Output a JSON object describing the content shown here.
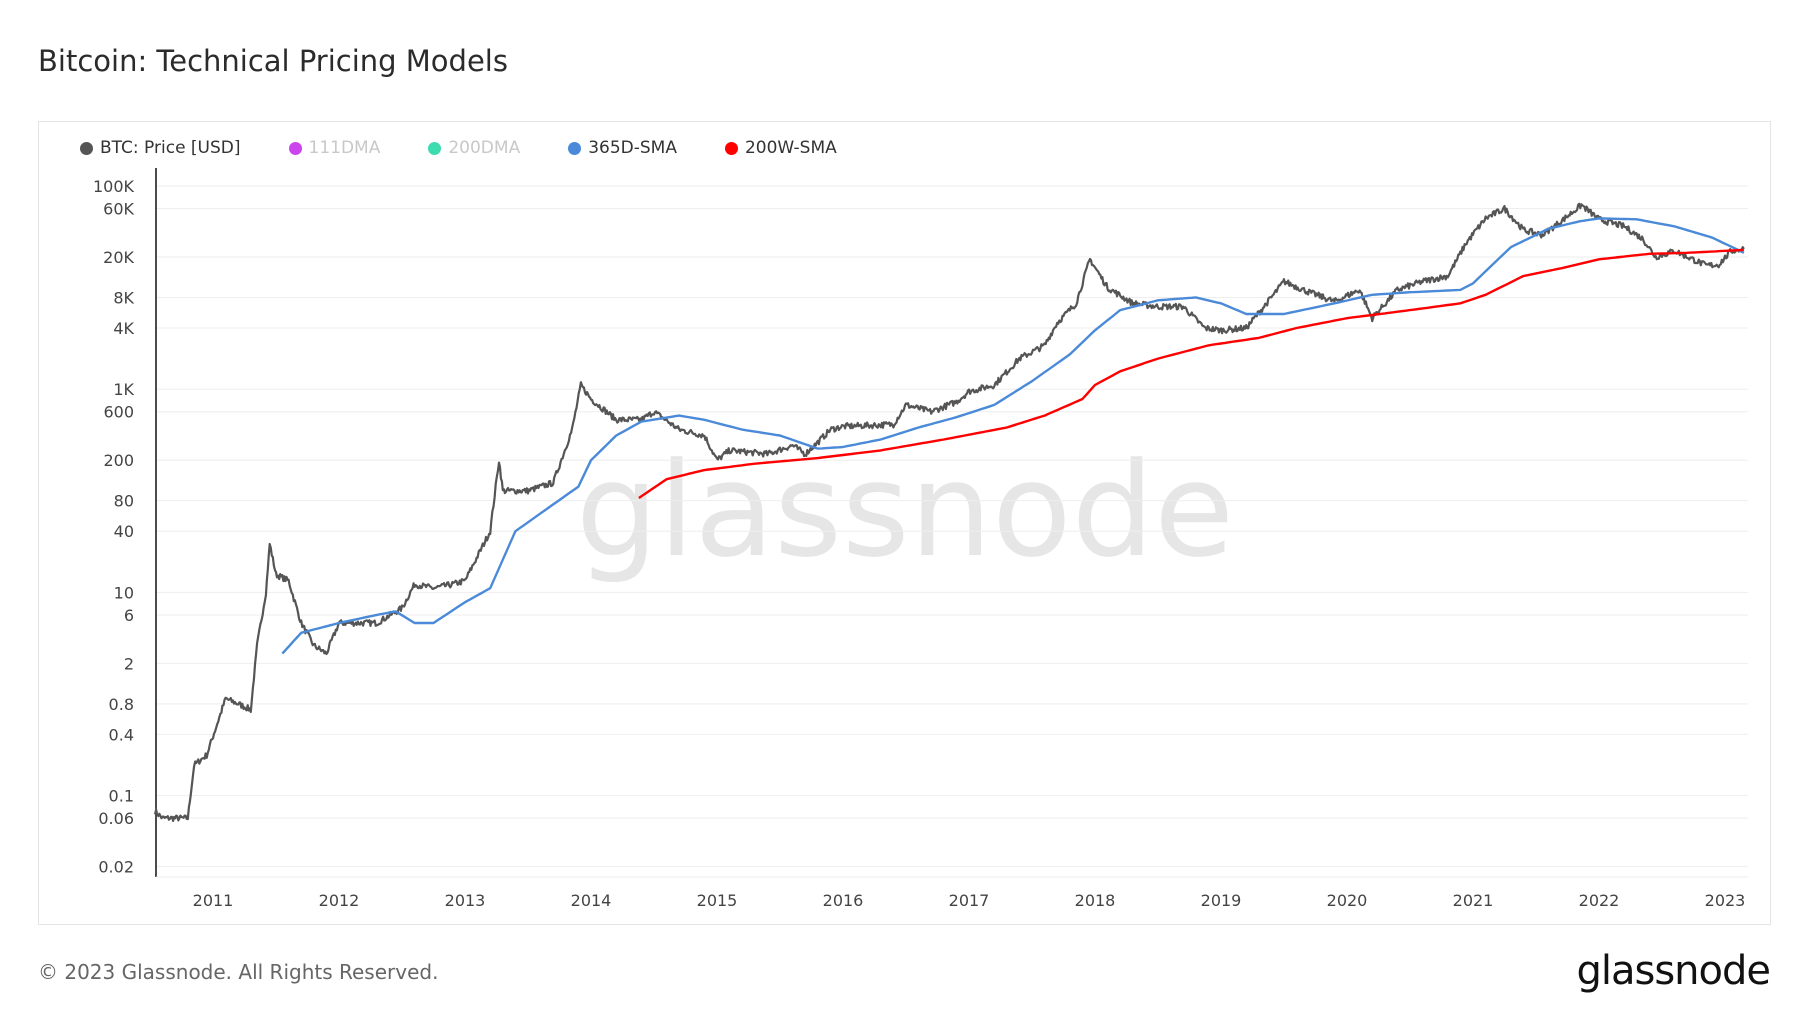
{
  "title": "Bitcoin: Technical Pricing Models",
  "footer": "© 2023 Glassnode. All Rights Reserved.",
  "logo": "glassnode",
  "watermark": "glassnode",
  "legend": [
    {
      "label": "BTC: Price [USD]",
      "color": "#555555",
      "active": true
    },
    {
      "label": "111DMA",
      "color": "#cc44ee",
      "active": false
    },
    {
      "label": "200DMA",
      "color": "#3ddbb0",
      "active": false
    },
    {
      "label": "365D-SMA",
      "color": "#4a8ad8",
      "active": true
    },
    {
      "label": "200W-SMA",
      "color": "#ff0000",
      "active": true
    }
  ],
  "chart_data": {
    "type": "line",
    "title": "Bitcoin: Technical Pricing Models",
    "yscale": "log",
    "ylim": [
      0.015,
      150000
    ],
    "xlim": [
      2010.54,
      2023.18
    ],
    "grid": true,
    "legend_position": "top-left",
    "y_ticks": [
      "100K",
      "60K",
      "20K",
      "8K",
      "4K",
      "1K",
      "600",
      "200",
      "80",
      "40",
      "10",
      "6",
      "2",
      "0.8",
      "0.4",
      "0.1",
      "0.06",
      "0.02"
    ],
    "y_tick_values": [
      100000,
      60000,
      20000,
      8000,
      4000,
      1000,
      600,
      200,
      80,
      40,
      10,
      6,
      2,
      0.8,
      0.4,
      0.1,
      0.06,
      0.02
    ],
    "x_ticks": [
      "2011",
      "2012",
      "2013",
      "2014",
      "2015",
      "2016",
      "2017",
      "2018",
      "2019",
      "2020",
      "2021",
      "2022",
      "2023"
    ],
    "series": [
      {
        "name": "BTC: Price [USD]",
        "color": "#555555",
        "points": [
          [
            2010.54,
            0.07
          ],
          [
            2010.6,
            0.06
          ],
          [
            2010.8,
            0.06
          ],
          [
            2010.85,
            0.2
          ],
          [
            2010.95,
            0.25
          ],
          [
            2011.1,
            0.9
          ],
          [
            2011.2,
            0.8
          ],
          [
            2011.3,
            0.7
          ],
          [
            2011.35,
            3
          ],
          [
            2011.42,
            10
          ],
          [
            2011.45,
            30
          ],
          [
            2011.5,
            15
          ],
          [
            2011.6,
            13
          ],
          [
            2011.7,
            5
          ],
          [
            2011.8,
            3
          ],
          [
            2011.9,
            2.5
          ],
          [
            2012.0,
            5
          ],
          [
            2012.1,
            5
          ],
          [
            2012.3,
            5
          ],
          [
            2012.5,
            7
          ],
          [
            2012.6,
            12
          ],
          [
            2012.75,
            11
          ],
          [
            2012.9,
            12
          ],
          [
            2013.0,
            13
          ],
          [
            2013.2,
            40
          ],
          [
            2013.27,
            200
          ],
          [
            2013.3,
            100
          ],
          [
            2013.5,
            100
          ],
          [
            2013.7,
            120
          ],
          [
            2013.85,
            400
          ],
          [
            2013.92,
            1100
          ],
          [
            2014.0,
            800
          ],
          [
            2014.2,
            500
          ],
          [
            2014.4,
            500
          ],
          [
            2014.5,
            600
          ],
          [
            2014.7,
            400
          ],
          [
            2014.9,
            350
          ],
          [
            2015.0,
            200
          ],
          [
            2015.1,
            250
          ],
          [
            2015.4,
            230
          ],
          [
            2015.6,
            280
          ],
          [
            2015.7,
            230
          ],
          [
            2015.8,
            300
          ],
          [
            2015.9,
            400
          ],
          [
            2016.0,
            430
          ],
          [
            2016.4,
            450
          ],
          [
            2016.5,
            700
          ],
          [
            2016.7,
            600
          ],
          [
            2016.9,
            750
          ],
          [
            2017.0,
            950
          ],
          [
            2017.2,
            1100
          ],
          [
            2017.4,
            2000
          ],
          [
            2017.6,
            2700
          ],
          [
            2017.7,
            4500
          ],
          [
            2017.85,
            7000
          ],
          [
            2017.96,
            19000
          ],
          [
            2018.1,
            10000
          ],
          [
            2018.3,
            7000
          ],
          [
            2018.5,
            6500
          ],
          [
            2018.7,
            6500
          ],
          [
            2018.87,
            4000
          ],
          [
            2019.0,
            3800
          ],
          [
            2019.2,
            4000
          ],
          [
            2019.4,
            8000
          ],
          [
            2019.5,
            11500
          ],
          [
            2019.7,
            9000
          ],
          [
            2019.9,
            7300
          ],
          [
            2020.1,
            9500
          ],
          [
            2020.2,
            5000
          ],
          [
            2020.4,
            9500
          ],
          [
            2020.6,
            11500
          ],
          [
            2020.8,
            13000
          ],
          [
            2020.95,
            28000
          ],
          [
            2021.1,
            48000
          ],
          [
            2021.25,
            60000
          ],
          [
            2021.4,
            37000
          ],
          [
            2021.55,
            33000
          ],
          [
            2021.7,
            45000
          ],
          [
            2021.86,
            65000
          ],
          [
            2022.0,
            47000
          ],
          [
            2022.2,
            40000
          ],
          [
            2022.35,
            30000
          ],
          [
            2022.45,
            20000
          ],
          [
            2022.6,
            23000
          ],
          [
            2022.85,
            16500
          ],
          [
            2022.95,
            16800
          ],
          [
            2023.05,
            23000
          ],
          [
            2023.15,
            24000
          ]
        ]
      },
      {
        "name": "365D-SMA",
        "color": "#4a8ad8",
        "points": [
          [
            2011.55,
            2.5
          ],
          [
            2011.7,
            4
          ],
          [
            2012.0,
            5
          ],
          [
            2012.3,
            6
          ],
          [
            2012.45,
            6.5
          ],
          [
            2012.6,
            5
          ],
          [
            2012.75,
            5
          ],
          [
            2013.0,
            8
          ],
          [
            2013.2,
            11
          ],
          [
            2013.4,
            40
          ],
          [
            2013.6,
            60
          ],
          [
            2013.9,
            110
          ],
          [
            2014.0,
            200
          ],
          [
            2014.2,
            350
          ],
          [
            2014.4,
            480
          ],
          [
            2014.7,
            550
          ],
          [
            2014.9,
            500
          ],
          [
            2015.2,
            400
          ],
          [
            2015.5,
            350
          ],
          [
            2015.8,
            260
          ],
          [
            2016.0,
            270
          ],
          [
            2016.3,
            320
          ],
          [
            2016.6,
            420
          ],
          [
            2016.9,
            530
          ],
          [
            2017.2,
            700
          ],
          [
            2017.5,
            1200
          ],
          [
            2017.8,
            2200
          ],
          [
            2018.0,
            3800
          ],
          [
            2018.2,
            6000
          ],
          [
            2018.5,
            7500
          ],
          [
            2018.8,
            8000
          ],
          [
            2019.0,
            7000
          ],
          [
            2019.2,
            5500
          ],
          [
            2019.5,
            5500
          ],
          [
            2019.9,
            7000
          ],
          [
            2020.2,
            8500
          ],
          [
            2020.5,
            9000
          ],
          [
            2020.9,
            9500
          ],
          [
            2021.0,
            11000
          ],
          [
            2021.3,
            25000
          ],
          [
            2021.6,
            38000
          ],
          [
            2021.85,
            45000
          ],
          [
            2022.0,
            48000
          ],
          [
            2022.3,
            47000
          ],
          [
            2022.6,
            40000
          ],
          [
            2022.9,
            31000
          ],
          [
            2023.15,
            22000
          ]
        ]
      },
      {
        "name": "200W-SMA",
        "color": "#ff0000",
        "points": [
          [
            2014.38,
            85
          ],
          [
            2014.6,
            130
          ],
          [
            2014.9,
            160
          ],
          [
            2015.3,
            185
          ],
          [
            2015.8,
            210
          ],
          [
            2016.3,
            250
          ],
          [
            2016.8,
            320
          ],
          [
            2017.3,
            420
          ],
          [
            2017.6,
            550
          ],
          [
            2017.9,
            800
          ],
          [
            2018.0,
            1100
          ],
          [
            2018.2,
            1500
          ],
          [
            2018.5,
            2000
          ],
          [
            2018.9,
            2700
          ],
          [
            2019.3,
            3200
          ],
          [
            2019.6,
            4000
          ],
          [
            2020.0,
            5000
          ],
          [
            2020.5,
            6000
          ],
          [
            2020.9,
            7000
          ],
          [
            2021.1,
            8500
          ],
          [
            2021.4,
            13000
          ],
          [
            2021.7,
            15500
          ],
          [
            2022.0,
            19000
          ],
          [
            2022.4,
            21500
          ],
          [
            2022.7,
            22000
          ],
          [
            2023.15,
            23500
          ]
        ]
      }
    ]
  }
}
